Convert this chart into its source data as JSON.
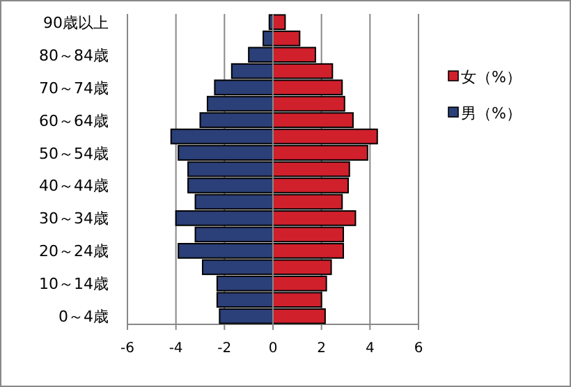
{
  "chart_data": {
    "type": "bar",
    "orientation": "horizontal",
    "stacked": true,
    "categories": [
      "90歳以上",
      null,
      "80～84歳",
      null,
      "70～74歳",
      null,
      "60～64歳",
      null,
      "50～54歳",
      null,
      "40～44歳",
      null,
      "30～34歳",
      null,
      "20～24歳",
      null,
      "10～14歳",
      null,
      "0～4歳"
    ],
    "series": [
      {
        "name": "女（%）",
        "color": "#d0202c",
        "values": [
          0.5,
          1.1,
          1.75,
          2.45,
          2.85,
          2.95,
          3.3,
          4.3,
          3.9,
          3.15,
          3.1,
          2.85,
          3.4,
          2.9,
          2.9,
          2.4,
          2.2,
          2.0,
          2.15
        ]
      },
      {
        "name": "男（%）",
        "color": "#2b3f78",
        "values": [
          -0.15,
          -0.4,
          -1.0,
          -1.7,
          -2.4,
          -2.7,
          -3.0,
          -4.2,
          -3.9,
          -3.5,
          -3.5,
          -3.2,
          -4.0,
          -3.2,
          -3.9,
          -2.9,
          -2.3,
          -2.3,
          -2.2
        ]
      }
    ],
    "xlim": [
      -6,
      6
    ],
    "xticks": [
      -6,
      -4,
      -2,
      0,
      2,
      4,
      6
    ],
    "grid": "x",
    "legend": "right"
  }
}
